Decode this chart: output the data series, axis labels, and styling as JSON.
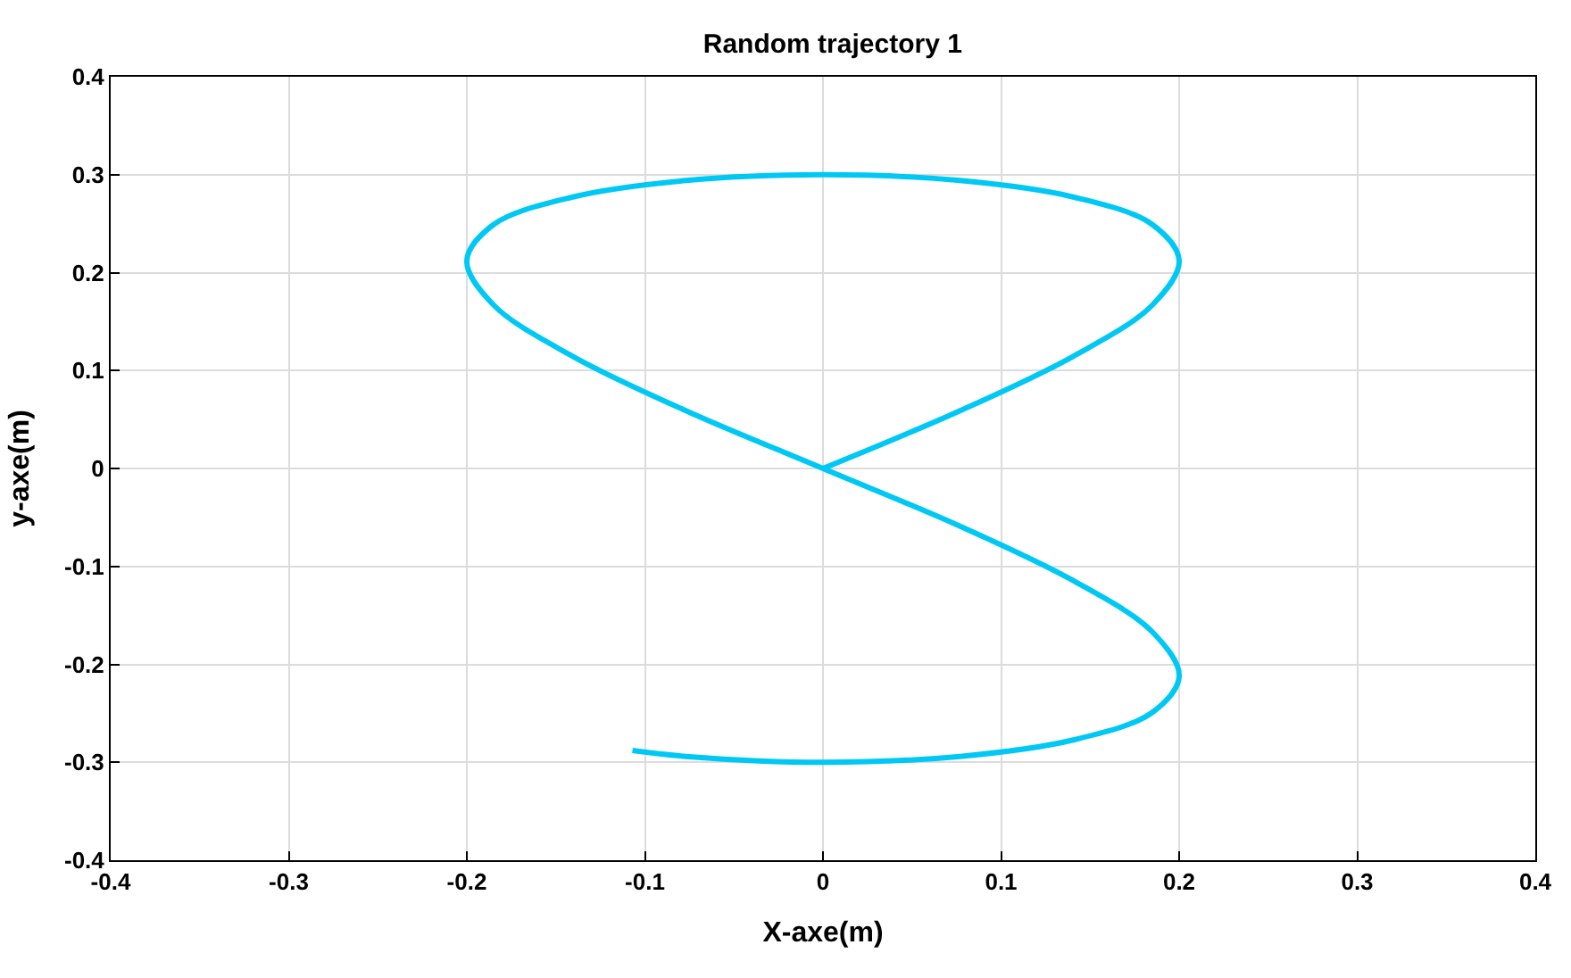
{
  "chart_data": {
    "type": "line",
    "title": "Random trajectory 1",
    "xlabel": "X-axe(m)",
    "ylabel": "y-axe(m)",
    "series": [
      {
        "color": "#00c8f5",
        "x": [
          0,
          0.077,
          0.141,
          0.185,
          0.2,
          0.185,
          0.141,
          0.077,
          0,
          -0.077,
          -0.141,
          -0.185,
          -0.2,
          -0.185,
          -0.141,
          -0.077,
          0,
          0.077,
          0.141,
          0.185,
          0.2,
          0.185,
          0.141,
          0.077,
          0,
          -0.077,
          -0.107
        ],
        "values": [
          0,
          0.059,
          0.115,
          0.167,
          0.212,
          0.249,
          0.277,
          0.294,
          0.3,
          0.294,
          0.277,
          0.249,
          0.212,
          0.167,
          0.115,
          0.059,
          0,
          -0.059,
          -0.115,
          -0.167,
          -0.212,
          -0.249,
          -0.277,
          -0.294,
          -0.3,
          -0.294,
          -0.288
        ]
      }
    ],
    "xlim": [
      -0.4,
      0.4
    ],
    "xticks": [
      -0.4,
      -0.3,
      -0.2,
      -0.1,
      0,
      0.1,
      0.2,
      0.3,
      0.4
    ],
    "ylim": [
      -0.4,
      0.4
    ],
    "yticks": [
      -0.4,
      -0.3,
      -0.2,
      -0.1,
      0,
      0.1,
      0.2,
      0.3,
      0.4
    ],
    "grid": true,
    "marker": "none",
    "line_style": "solid"
  }
}
